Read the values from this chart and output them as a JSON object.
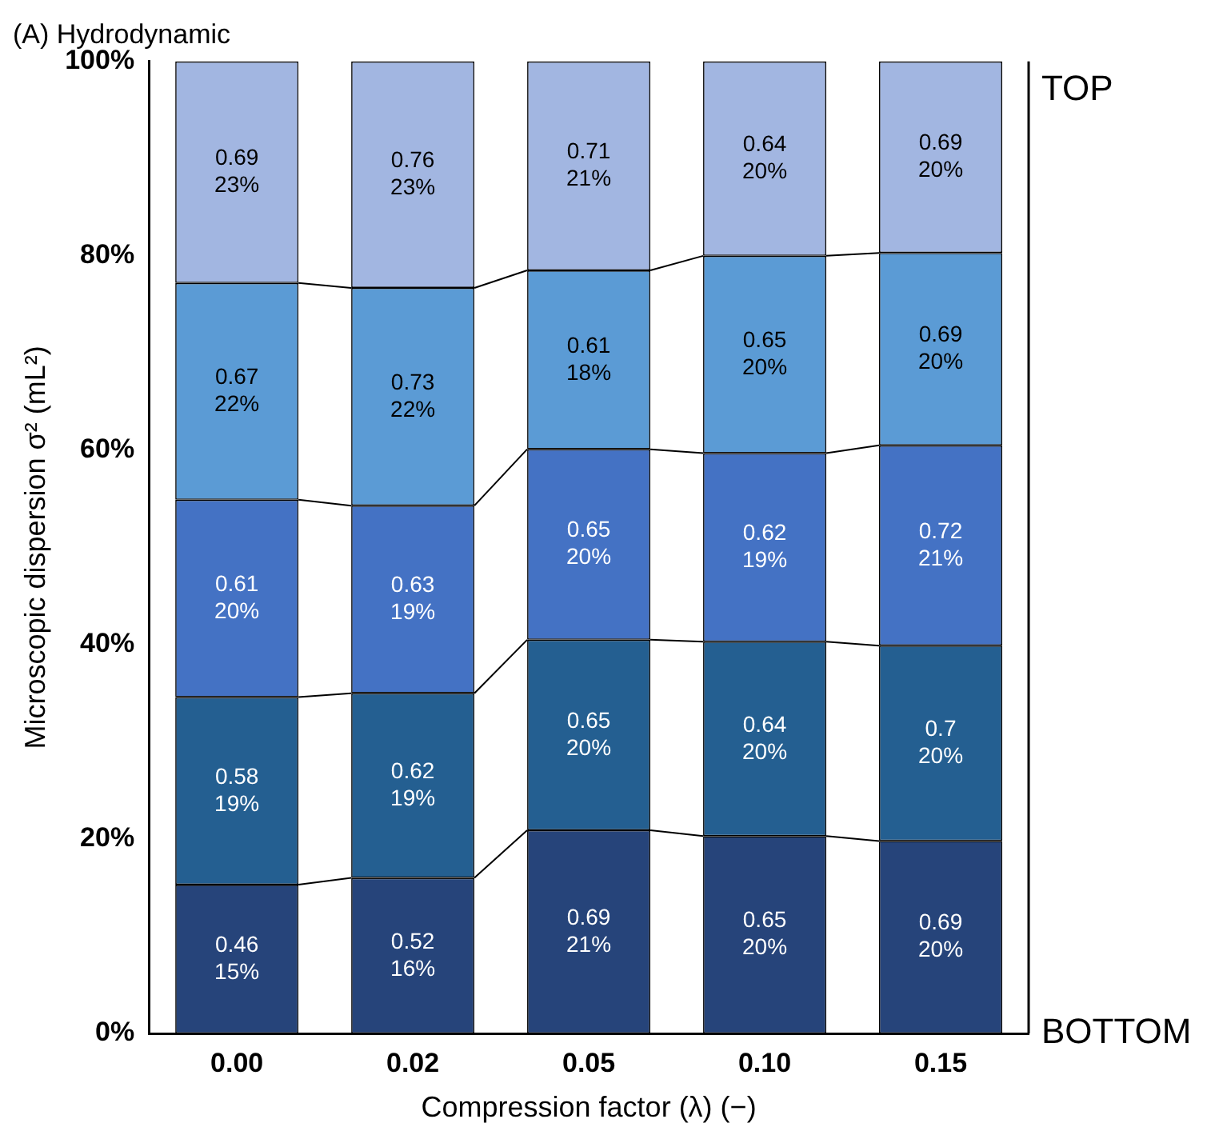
{
  "chart_data": {
    "type": "bar",
    "stacked": true,
    "title": "(A) Hydrodynamic",
    "xlabel": "Compression factor (λ) (−)",
    "ylabel": "Microscopic dispersion σ² (mL²)",
    "categories": [
      "0.00",
      "0.02",
      "0.05",
      "0.10",
      "0.15"
    ],
    "series": [
      {
        "color": "#26447a",
        "values": [
          15.3,
          16.0,
          20.9,
          20.3,
          19.8
        ],
        "value_labels": [
          "0.46\n15%",
          "0.52\n16%",
          "0.69\n21%",
          "0.65\n20%",
          "0.69\n20%"
        ]
      },
      {
        "color": "#245f91",
        "values": [
          19.3,
          19.0,
          19.6,
          20.0,
          20.1
        ],
        "value_labels": [
          "0.58\n19%",
          "0.62\n19%",
          "0.65\n20%",
          "0.64\n20%",
          "0.7\n20%"
        ]
      },
      {
        "color": "#4472c4",
        "values": [
          20.3,
          19.3,
          19.6,
          19.4,
          20.6
        ],
        "value_labels": [
          "0.61\n20%",
          "0.63\n19%",
          "0.65\n20%",
          "0.62\n19%",
          "0.72\n21%"
        ]
      },
      {
        "color": "#5b9bd5",
        "values": [
          22.3,
          22.4,
          18.4,
          20.3,
          19.8
        ],
        "value_labels": [
          "0.67\n22%",
          "0.73\n22%",
          "0.61\n18%",
          "0.65\n20%",
          "0.69\n20%"
        ]
      },
      {
        "color": "#a2b6e1",
        "values": [
          22.8,
          23.3,
          21.5,
          20.0,
          19.7
        ],
        "value_labels": [
          "0.69\n23%",
          "0.76\n23%",
          "0.71\n21%",
          "0.64\n20%",
          "0.69\n20%"
        ]
      }
    ],
    "ylim": [
      0,
      100
    ],
    "yticks": [
      {
        "value": 0,
        "label": "0%"
      },
      {
        "value": 20,
        "label": "20%"
      },
      {
        "value": 40,
        "label": "40%"
      },
      {
        "value": 60,
        "label": "60%"
      },
      {
        "value": 80,
        "label": "80%"
      },
      {
        "value": 100,
        "label": "100%"
      }
    ],
    "grid": false,
    "annotations": [
      "TOP",
      "BOTTOM"
    ]
  }
}
